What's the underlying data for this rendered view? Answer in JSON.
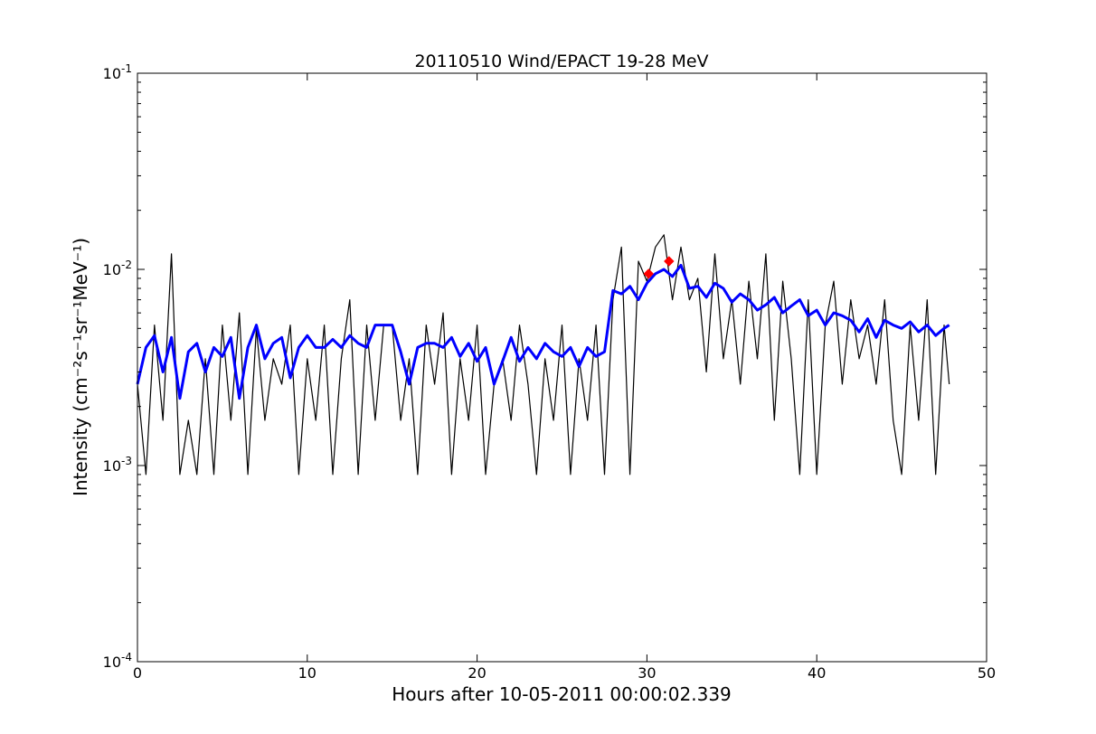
{
  "chart_data": {
    "type": "line",
    "title": "20110510 Wind/EPACT 19-28 MeV",
    "xlabel": "Hours after 10-05-2011 00:00:02.339",
    "ylabel": "Intensity (cm⁻²s⁻¹sr⁻¹MeV⁻¹)",
    "xlim": [
      0,
      50
    ],
    "ylim": [
      0.0001,
      0.1
    ],
    "yscale": "log",
    "grid": false,
    "x_ticks": [
      0,
      10,
      20,
      30,
      40,
      50
    ],
    "x_tick_labels": [
      "0",
      "10",
      "20",
      "30",
      "40",
      "50"
    ],
    "y_ticks": [
      0.0001,
      0.001,
      0.01,
      0.1
    ],
    "y_tick_labels": [
      {
        "base": "10",
        "exp": "-4"
      },
      {
        "base": "10",
        "exp": "-3"
      },
      {
        "base": "10",
        "exp": "-2"
      },
      {
        "base": "10",
        "exp": "-1"
      }
    ],
    "series": [
      {
        "style": "raw",
        "color": "#000000",
        "x": [
          0.0,
          0.5,
          1.0,
          1.5,
          2.0,
          2.5,
          3.0,
          3.5,
          4.0,
          4.5,
          5.0,
          5.5,
          6.0,
          6.5,
          7.0,
          7.5,
          8.0,
          8.5,
          9.0,
          9.5,
          10.0,
          10.5,
          11.0,
          11.5,
          12.0,
          12.5,
          13.0,
          13.5,
          14.0,
          14.5,
          15.0,
          15.5,
          16.0,
          16.5,
          17.0,
          17.5,
          18.0,
          18.5,
          19.0,
          19.5,
          20.0,
          20.5,
          21.0,
          21.5,
          22.0,
          22.5,
          23.0,
          23.5,
          24.0,
          24.5,
          25.0,
          25.5,
          26.0,
          26.5,
          27.0,
          27.5,
          28.0,
          28.5,
          29.0,
          29.5,
          30.0,
          30.5,
          31.0,
          31.5,
          32.0,
          32.5,
          33.0,
          33.5,
          34.0,
          34.5,
          35.0,
          35.5,
          36.0,
          36.5,
          37.0,
          37.5,
          38.0,
          38.5,
          39.0,
          39.5,
          40.0,
          40.5,
          41.0,
          41.5,
          42.0,
          42.5,
          43.0,
          43.5,
          44.0,
          44.5,
          45.0,
          45.5,
          46.0,
          46.5,
          47.0,
          47.5,
          47.8
        ],
        "y": [
          0.0026,
          0.0009,
          0.0052,
          0.0017,
          0.012,
          0.0009,
          0.0017,
          0.0009,
          0.0035,
          0.0009,
          0.0052,
          0.0017,
          0.006,
          0.0009,
          0.005,
          0.0017,
          0.0035,
          0.0026,
          0.0052,
          0.0009,
          0.0035,
          0.0017,
          0.0052,
          0.0009,
          0.0035,
          0.007,
          0.0009,
          0.0052,
          0.0017,
          0.0052,
          0.0052,
          0.0017,
          0.0035,
          0.0009,
          0.0052,
          0.0026,
          0.006,
          0.0009,
          0.0035,
          0.0017,
          0.0052,
          0.0009,
          0.0026,
          0.0035,
          0.0017,
          0.0052,
          0.0026,
          0.0009,
          0.0035,
          0.0017,
          0.0052,
          0.0009,
          0.0035,
          0.0017,
          0.0052,
          0.0009,
          0.007,
          0.013,
          0.0009,
          0.011,
          0.0087,
          0.013,
          0.015,
          0.007,
          0.013,
          0.007,
          0.009,
          0.003,
          0.012,
          0.0035,
          0.007,
          0.0026,
          0.0087,
          0.0035,
          0.012,
          0.0017,
          0.0087,
          0.0035,
          0.0009,
          0.007,
          0.0009,
          0.0052,
          0.0087,
          0.0026,
          0.007,
          0.0035,
          0.0052,
          0.0026,
          0.007,
          0.0017,
          0.0009,
          0.0052,
          0.0017,
          0.007,
          0.0009,
          0.0052,
          0.0026
        ]
      },
      {
        "style": "smoothed",
        "color": "#0000ff",
        "x": [
          0.0,
          0.5,
          1.0,
          1.5,
          2.0,
          2.5,
          3.0,
          3.5,
          4.0,
          4.5,
          5.0,
          5.5,
          6.0,
          6.5,
          7.0,
          7.5,
          8.0,
          8.5,
          9.0,
          9.5,
          10.0,
          10.5,
          11.0,
          11.5,
          12.0,
          12.5,
          13.0,
          13.5,
          14.0,
          14.5,
          15.0,
          15.5,
          16.0,
          16.5,
          17.0,
          17.5,
          18.0,
          18.5,
          19.0,
          19.5,
          20.0,
          20.5,
          21.0,
          21.5,
          22.0,
          22.5,
          23.0,
          23.5,
          24.0,
          24.5,
          25.0,
          25.5,
          26.0,
          26.5,
          27.0,
          27.5,
          28.0,
          28.5,
          29.0,
          29.5,
          30.0,
          30.5,
          31.0,
          31.5,
          32.0,
          32.5,
          33.0,
          33.5,
          34.0,
          34.5,
          35.0,
          35.5,
          36.0,
          36.5,
          37.0,
          37.5,
          38.0,
          38.5,
          39.0,
          39.5,
          40.0,
          40.5,
          41.0,
          41.5,
          42.0,
          42.5,
          43.0,
          43.5,
          44.0,
          44.5,
          45.0,
          45.5,
          46.0,
          46.5,
          47.0,
          47.5,
          47.8
        ],
        "y": [
          0.0026,
          0.004,
          0.0046,
          0.003,
          0.0045,
          0.0022,
          0.0038,
          0.0042,
          0.003,
          0.004,
          0.0036,
          0.0045,
          0.0022,
          0.004,
          0.0052,
          0.0035,
          0.0042,
          0.0045,
          0.0028,
          0.004,
          0.0046,
          0.004,
          0.004,
          0.0044,
          0.004,
          0.0046,
          0.0042,
          0.004,
          0.0052,
          0.0052,
          0.0052,
          0.0038,
          0.0026,
          0.004,
          0.0042,
          0.0042,
          0.004,
          0.0045,
          0.0036,
          0.0042,
          0.0034,
          0.004,
          0.0026,
          0.0034,
          0.0045,
          0.0034,
          0.004,
          0.0035,
          0.0042,
          0.0038,
          0.0036,
          0.004,
          0.0032,
          0.004,
          0.0036,
          0.0038,
          0.0078,
          0.0075,
          0.0082,
          0.007,
          0.0085,
          0.0095,
          0.01,
          0.0092,
          0.0105,
          0.008,
          0.0082,
          0.0072,
          0.0085,
          0.008,
          0.0068,
          0.0075,
          0.007,
          0.0062,
          0.0066,
          0.0072,
          0.006,
          0.0065,
          0.007,
          0.0058,
          0.0062,
          0.0052,
          0.006,
          0.0058,
          0.0055,
          0.0048,
          0.0056,
          0.0045,
          0.0055,
          0.0052,
          0.005,
          0.0054,
          0.0048,
          0.0052,
          0.0046,
          0.005,
          0.0052
        ]
      }
    ],
    "markers": [
      {
        "x": 30.1,
        "y": 0.0095,
        "color": "#ff0000"
      },
      {
        "x": 31.3,
        "y": 0.011,
        "color": "#ff0000"
      }
    ]
  }
}
